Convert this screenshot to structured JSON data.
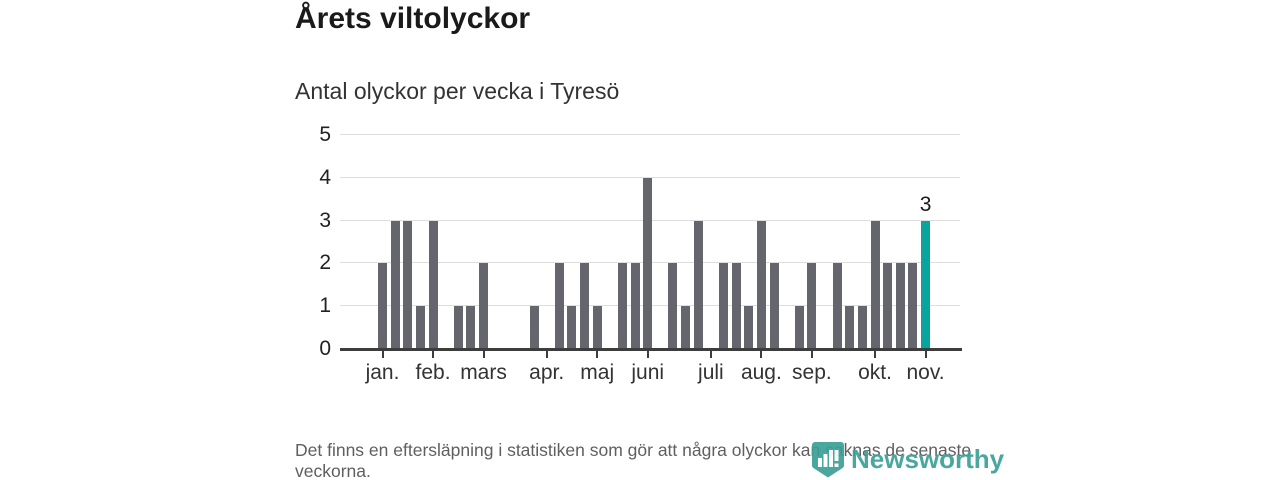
{
  "header": {
    "title": "Årets viltolyckor",
    "subtitle": "Antal olyckor per vecka i Tyresö"
  },
  "chart_data": {
    "type": "bar",
    "title": "Årets viltolyckor",
    "subtitle": "Antal olyckor per vecka i Tyresö",
    "x_unit": "vecka (week of year, starting week 1)",
    "values": [
      2,
      3,
      3,
      1,
      3,
      0,
      1,
      1,
      2,
      0,
      0,
      0,
      1,
      0,
      2,
      1,
      2,
      1,
      0,
      2,
      2,
      4,
      0,
      2,
      1,
      3,
      0,
      2,
      2,
      1,
      3,
      2,
      0,
      1,
      2,
      0,
      2,
      1,
      1,
      3,
      2,
      2,
      2,
      3
    ],
    "week_start": 1,
    "ylim": [
      0,
      5
    ],
    "y_ticks": [
      0,
      1,
      2,
      3,
      4,
      5
    ],
    "month_ticks": [
      {
        "label": "jan.",
        "slot": 0
      },
      {
        "label": "feb.",
        "slot": 4
      },
      {
        "label": "mars",
        "slot": 8
      },
      {
        "label": "apr.",
        "slot": 13
      },
      {
        "label": "maj",
        "slot": 17
      },
      {
        "label": "juni",
        "slot": 21
      },
      {
        "label": "juli",
        "slot": 26
      },
      {
        "label": "aug.",
        "slot": 30
      },
      {
        "label": "sep.",
        "slot": 34
      },
      {
        "label": "okt.",
        "slot": 39
      },
      {
        "label": "nov.",
        "slot": 43
      }
    ],
    "highlight": {
      "index": 43,
      "label": "3",
      "color": "#0aa4a0"
    },
    "bar_color": "#65656d",
    "grid": true,
    "legend": "none"
  },
  "footer": {
    "note": "Det finns en eftersläpning i statistiken som gör att några olyckor kan saknas de senaste veckorna."
  },
  "logo": {
    "text": "Newsworthy",
    "icon": "newsworthy-pin-barchart-icon",
    "color": "#3aa096"
  }
}
